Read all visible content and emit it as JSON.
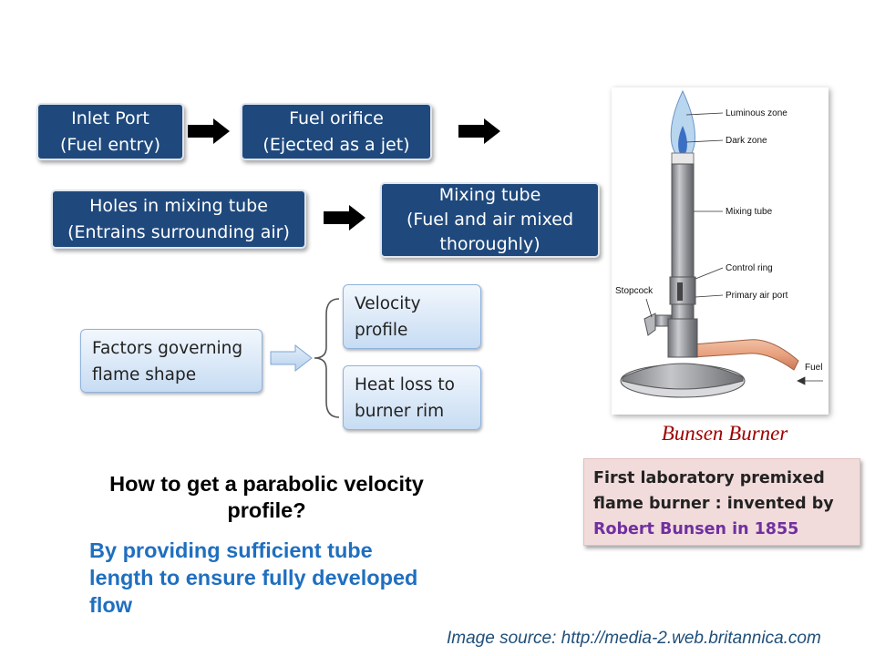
{
  "flow": {
    "inlet": {
      "line1": "Inlet Port",
      "line2": "(Fuel entry)"
    },
    "orifice": {
      "line1": "Fuel orifice",
      "line2": "(Ejected as a jet)"
    },
    "holes": {
      "line1": "Holes in mixing tube",
      "line2": "(Entrains surrounding air)"
    },
    "mixing": {
      "line1": "Mixing tube",
      "line2": "(Fuel and air mixed",
      "line3": "thoroughly)"
    }
  },
  "factors": {
    "main": {
      "line1": "Factors governing",
      "line2": "flame shape"
    },
    "velocity": {
      "line1": "Velocity",
      "line2": "profile"
    },
    "heatloss": {
      "line1": "Heat loss to",
      "line2": "burner rim"
    }
  },
  "question": {
    "line1": "How to get a parabolic velocity",
    "line2": "profile?"
  },
  "answer": {
    "line1": "By providing sufficient tube",
    "line2": "length to ensure fully developed",
    "line3": "flow"
  },
  "illustration": {
    "labels": {
      "luminous": "Luminous zone",
      "dark": "Dark zone",
      "mixing": "Mixing tube",
      "control": "Control ring",
      "primary": "Primary air port",
      "stopcock": "Stopcock",
      "fuel": "Fuel"
    },
    "caption": "Bunsen Burner"
  },
  "info": {
    "line1": "First laboratory premixed",
    "line2": "flame burner : invented by",
    "line3": "Robert Bunsen in 1855"
  },
  "source": "Image source: http://media-2.web.britannica.com",
  "colors": {
    "navy": "#1f497d",
    "answer_blue": "#1f6fbf",
    "caption_red": "#a00000",
    "inventor_purple": "#7030a0"
  }
}
